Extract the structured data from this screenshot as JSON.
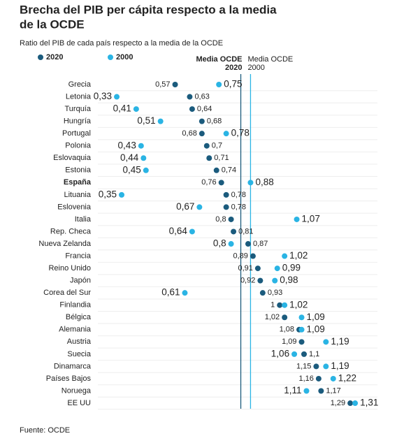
{
  "chart_data": {
    "type": "dot",
    "title": [
      "Brecha del PIB per cápita respecto a la media",
      "de la OCDE"
    ],
    "subtitle": "Ratio del PIB de cada país respecto a la media de la OCDE",
    "source": "Fuente: OCDE",
    "highlight": "España",
    "categories": [
      "Grecia",
      "Letonia",
      "Turquía",
      "Hungría",
      "Portugal",
      "Polonia",
      "Eslovaquia",
      "Estonia",
      "España",
      "Lituania",
      "Eslovenia",
      "Italia",
      "Rep. Checa",
      "Nueva Zelanda",
      "Francia",
      "Reino Unido",
      "Japón",
      "Corea del Sur",
      "Finlandia",
      "Bélgica",
      "Alemania",
      "Austria",
      "Suecia",
      "Dinamarca",
      "Países Bajos",
      "Noruega",
      "EE UU"
    ],
    "series": [
      {
        "name": "2020",
        "color": "#1b5b7d",
        "values": [
          0.57,
          0.63,
          0.64,
          0.68,
          0.68,
          0.7,
          0.71,
          0.74,
          0.76,
          0.78,
          0.78,
          0.8,
          0.81,
          0.87,
          0.89,
          0.91,
          0.92,
          0.93,
          1,
          1.02,
          1.08,
          1.09,
          1.1,
          1.15,
          1.16,
          1.17,
          1.29
        ],
        "value_labels": [
          "0,57",
          "0,63",
          "0,64",
          "0,68",
          "0,68",
          "0,7",
          "0,71",
          "0,74",
          "0,76",
          "0,78",
          "0,78",
          "0,8",
          "0,81",
          "0,87",
          "0,89",
          "0,91",
          "0,92",
          "0,93",
          "1",
          "1,02",
          "1,08",
          "1,09",
          "1,1",
          "1,15",
          "1,16",
          "1,17",
          "1,29"
        ]
      },
      {
        "name": "2000",
        "color": "#2ab4e4",
        "values": [
          0.75,
          0.33,
          0.41,
          0.51,
          0.78,
          0.43,
          0.44,
          0.45,
          0.88,
          0.35,
          0.67,
          1.07,
          0.64,
          0.8,
          1.02,
          0.99,
          0.98,
          0.61,
          1.02,
          1.09,
          1.09,
          1.19,
          1.06,
          1.19,
          1.22,
          1.11,
          1.31
        ],
        "value_labels": [
          "0,75",
          "0,33",
          "0,41",
          "0,51",
          "0,78",
          "0,43",
          "0,44",
          "0,45",
          "0,88",
          "0,35",
          "0,67",
          "1,07",
          "0,64",
          "0,8",
          "1,02",
          "0,99",
          "0,98",
          "0,61",
          "1,02",
          "1,09",
          "1,09",
          "1,19",
          "1,06",
          "1,19",
          "1,22",
          "1,11",
          "1,31"
        ]
      }
    ],
    "reference_lines": [
      {
        "label": [
          "Media OCDE",
          "2020"
        ],
        "value": 0.84,
        "color": "#1b5b7d",
        "bold": true
      },
      {
        "label": [
          "Media OCDE",
          "2000"
        ],
        "value": 0.88,
        "color": "#2ab4e4",
        "bold": false
      }
    ],
    "xlim": [
      0.3,
      1.35
    ],
    "grid": true
  }
}
